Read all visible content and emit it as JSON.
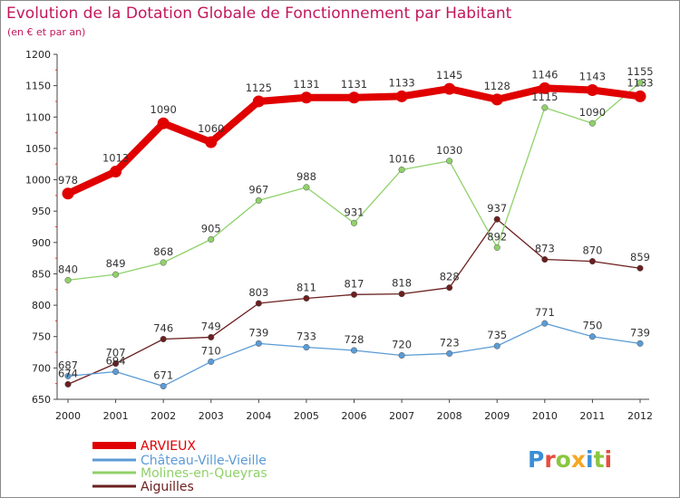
{
  "header": {
    "title": "Evolution de la Dotation Globale de Fonctionnement par Habitant",
    "subtitle": "(en € et par an)"
  },
  "logo": {
    "text": "Proxiti",
    "letter_colors": [
      "#3a8fd6",
      "#e84c3d",
      "#8cc63f",
      "#f5a623",
      "#3a8fd6",
      "#8cc63f",
      "#e84c3d"
    ]
  },
  "chart_data": {
    "type": "line",
    "title": "Evolution de la Dotation Globale de Fonctionnement par Habitant",
    "subtitle": "(en € et par an)",
    "x": [
      "2000",
      "2001",
      "2002",
      "2003",
      "2004",
      "2005",
      "2006",
      "2007",
      "2008",
      "2009",
      "2010",
      "2011",
      "2012"
    ],
    "ylim": [
      650,
      1200
    ],
    "yticks": [
      650,
      700,
      750,
      800,
      850,
      900,
      950,
      1000,
      1050,
      1100,
      1150,
      1200
    ],
    "grid": false,
    "legend": "bottom-left",
    "series": [
      {
        "name": "ARVIEUX",
        "color": "#e00000",
        "values": [
          978,
          1013,
          1090,
          1060,
          1125,
          1131,
          1131,
          1133,
          1145,
          1128,
          1146,
          1143,
          1133
        ]
      },
      {
        "name": "Château-Ville-Vieille",
        "color": "#5b9bd5",
        "values": [
          687,
          694,
          671,
          710,
          739,
          733,
          728,
          720,
          723,
          735,
          771,
          750,
          739
        ]
      },
      {
        "name": "Molines-en-Queyras",
        "color": "#8fd16a",
        "values": [
          840,
          849,
          868,
          905,
          967,
          988,
          931,
          1016,
          1030,
          892,
          1115,
          1090,
          1155
        ]
      },
      {
        "name": "Aiguilles",
        "color": "#6b1f1f",
        "values": [
          674,
          707,
          746,
          749,
          803,
          811,
          817,
          818,
          828,
          937,
          873,
          870,
          859
        ]
      }
    ]
  }
}
